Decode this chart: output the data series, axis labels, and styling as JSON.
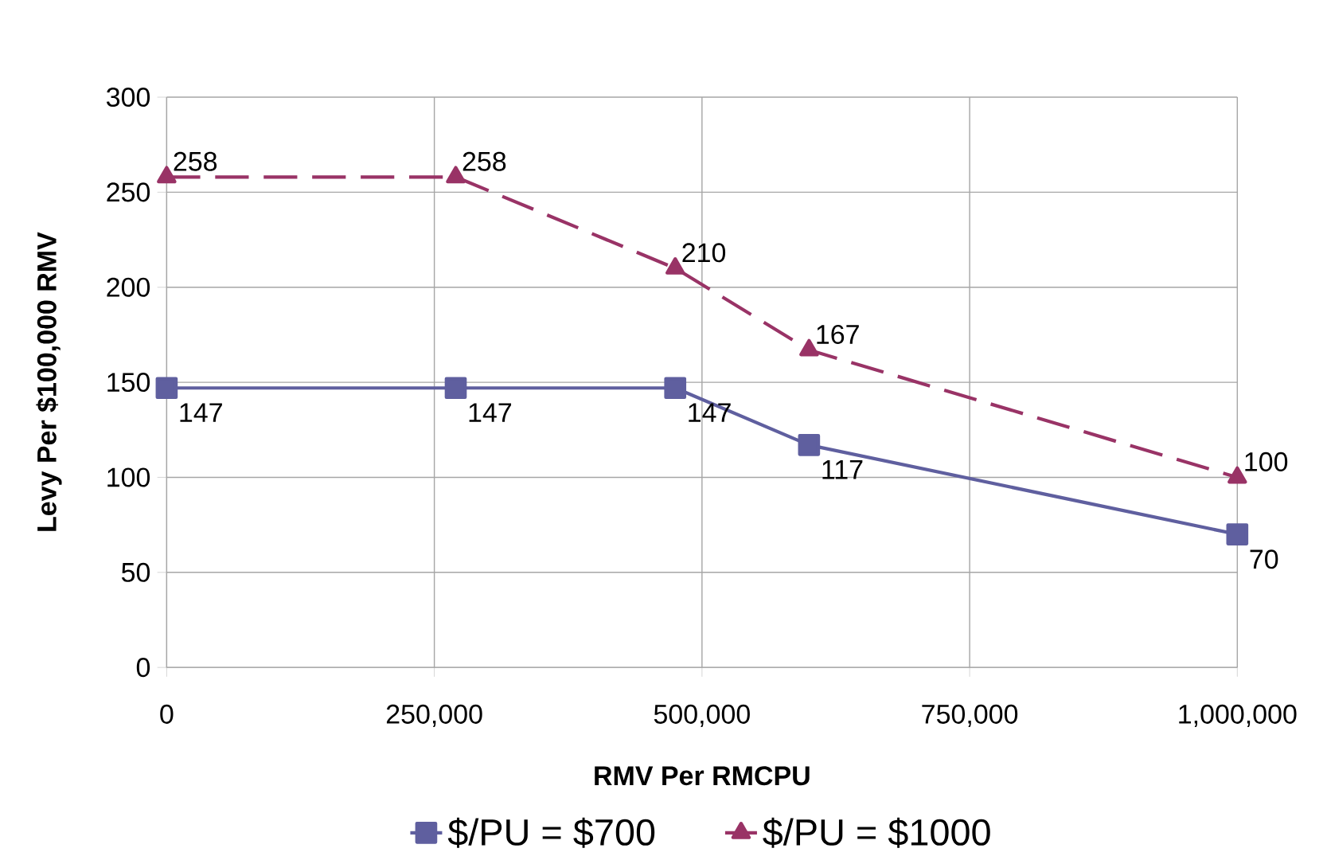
{
  "chart_data": {
    "type": "line",
    "xlabel": "RMV Per RMCPU",
    "ylabel": "Levy Per $100,000 RMV",
    "x": [
      0,
      270000,
      475000,
      600000,
      1000000
    ],
    "series": [
      {
        "name": "$/PU = $700",
        "color": "#5f5f9f",
        "marker": "square",
        "line_style": "solid",
        "values": [
          147,
          147,
          147,
          117,
          70
        ]
      },
      {
        "name": "$/PU = $1000",
        "color": "#993366",
        "marker": "triangle",
        "line_style": "dashed",
        "values": [
          258,
          258,
          210,
          167,
          100
        ]
      }
    ],
    "xlim": [
      0,
      1000000
    ],
    "ylim": [
      0,
      300
    ],
    "xticks": [
      0,
      {
        "value": 250000,
        "label": "250,000"
      },
      {
        "value": 500000,
        "label": "500,000"
      },
      {
        "value": 750000,
        "label": "750,000"
      },
      {
        "value": 1000000,
        "label": "1,000,000"
      }
    ],
    "yticks": [
      0,
      50,
      100,
      150,
      200,
      250,
      300
    ],
    "grid": true,
    "legend": "bottom",
    "data_labels": true
  }
}
